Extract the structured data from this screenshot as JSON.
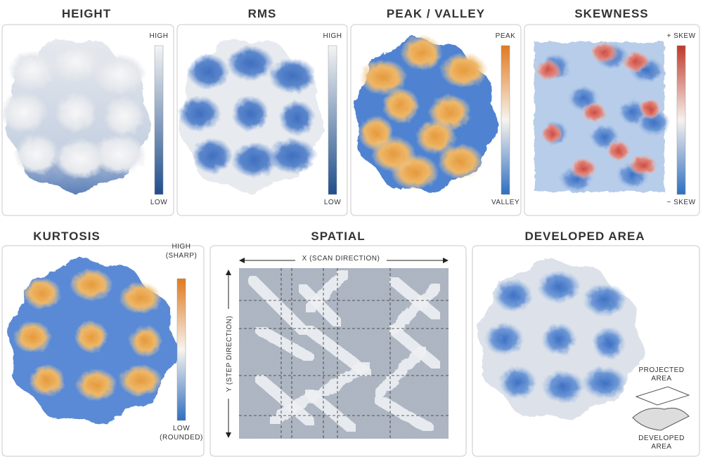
{
  "panels": [
    {
      "title": "HEIGHT",
      "scale_top": [
        "HIGH"
      ],
      "scale_bottom": [
        "LOW"
      ]
    },
    {
      "title": "RMS",
      "scale_top": [
        "HIGH"
      ],
      "scale_bottom": [
        "LOW"
      ]
    },
    {
      "title": "PEAK / VALLEY",
      "scale_top": [
        "PEAK"
      ],
      "scale_bottom": [
        "VALLEY"
      ]
    },
    {
      "title": "SKEWNESS",
      "scale_top": [
        "+ SKEW"
      ],
      "scale_bottom": [
        "− SKEW"
      ]
    },
    {
      "title": "KURTOSIS",
      "scale_top": [
        "HIGH",
        "(SHARP)"
      ],
      "scale_bottom": [
        "LOW",
        "(ROUNDED)"
      ]
    }
  ],
  "spatial": {
    "title": "SPATIAL",
    "x_axis": "X (SCAN DIRECTION)",
    "y_axis": "Y (STEP DIRECTION)"
  },
  "developed": {
    "title": "DEVELOPED AREA",
    "projected": [
      "PROJECTED",
      "AREA"
    ],
    "developed": [
      "DEVELOPED",
      "AREA"
    ]
  }
}
